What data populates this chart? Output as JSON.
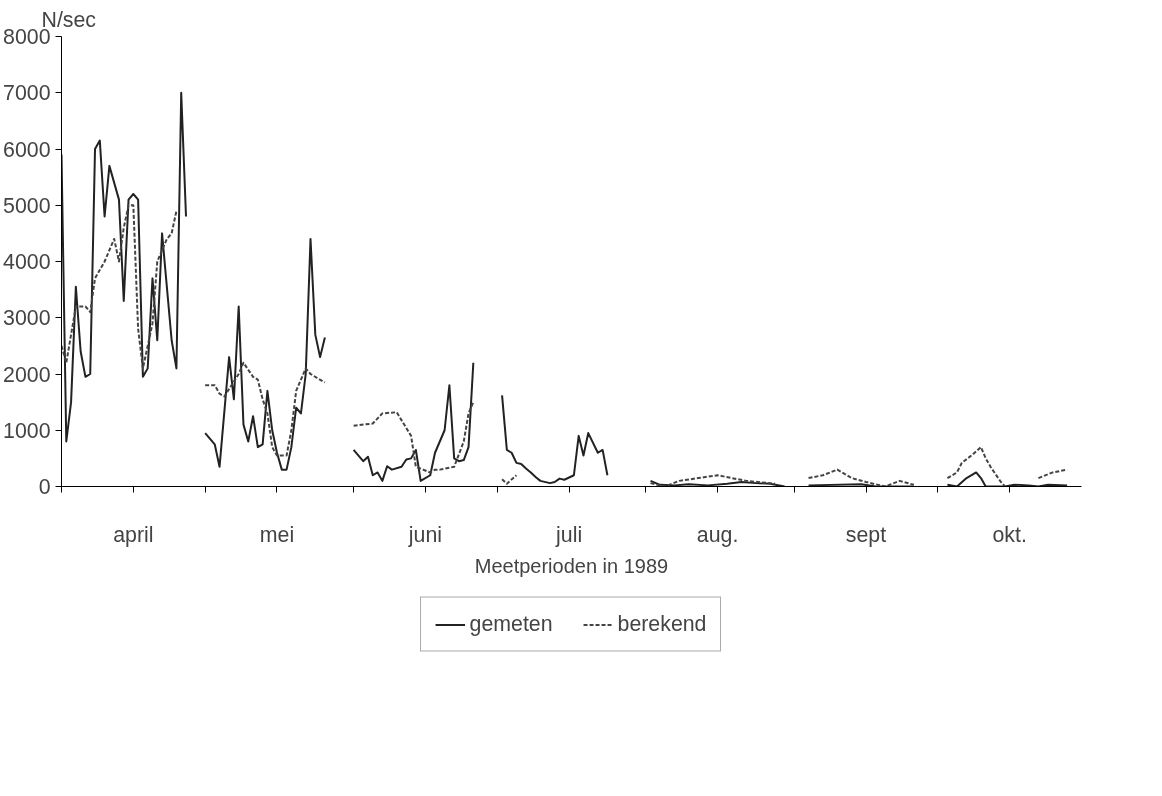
{
  "chart_data": {
    "type": "line",
    "ylabel": "N/sec",
    "xlabel": "Meetperioden in 1989",
    "xlim": [
      "1989-04-01",
      "1989-10-31"
    ],
    "ylim": [
      0,
      8000
    ],
    "xticks": [
      {
        "value": "1989-04-01",
        "label": null
      },
      {
        "value": "1989-04-16",
        "label": "april"
      },
      {
        "value": "1989-05-01",
        "label": null
      },
      {
        "value": "1989-05-16",
        "label": "mei"
      },
      {
        "value": "1989-06-01",
        "label": null
      },
      {
        "value": "1989-06-16",
        "label": "juni"
      },
      {
        "value": "1989-07-01",
        "label": null
      },
      {
        "value": "1989-07-16",
        "label": "juli"
      },
      {
        "value": "1989-08-01",
        "label": null
      },
      {
        "value": "1989-08-16",
        "label": "aug."
      },
      {
        "value": "1989-09-01",
        "label": null
      },
      {
        "value": "1989-09-16",
        "label": "sept"
      },
      {
        "value": "1989-10-01",
        "label": null
      },
      {
        "value": "1989-10-16",
        "label": "okt."
      }
    ],
    "yticks": [
      0,
      1000,
      2000,
      3000,
      4000,
      5000,
      6000,
      7000,
      8000
    ],
    "grid": false,
    "legend": "bottom",
    "series": [
      {
        "name": "gemeten",
        "color": "#222222",
        "line_style": "solid",
        "x": [
          "1989-04-01",
          "1989-04-02",
          "1989-04-03",
          "1989-04-04",
          "1989-04-05",
          "1989-04-06",
          "1989-04-07",
          "1989-04-08",
          "1989-04-09",
          "1989-04-10",
          "1989-04-11",
          "1989-04-13",
          "1989-04-14",
          "1989-04-15",
          "1989-04-16",
          "1989-04-17",
          "1989-04-18",
          "1989-04-19",
          "1989-04-20",
          "1989-04-21",
          "1989-04-22",
          "1989-04-24",
          "1989-04-25",
          "1989-04-26",
          "1989-04-27",
          "1989-04-29",
          "1989-05-01",
          "1989-05-03",
          "1989-05-04",
          "1989-05-06",
          "1989-05-07",
          "1989-05-08",
          "1989-05-09",
          "1989-05-10",
          "1989-05-11",
          "1989-05-12",
          "1989-05-13",
          "1989-05-14",
          "1989-05-15",
          "1989-05-16",
          "1989-05-17",
          "1989-05-18",
          "1989-05-19",
          "1989-05-20",
          "1989-05-21",
          "1989-05-22",
          "1989-05-23",
          "1989-05-24",
          "1989-05-25",
          "1989-05-26",
          "1989-05-29",
          "1989-06-01",
          "1989-06-03",
          "1989-06-04",
          "1989-06-05",
          "1989-06-06",
          "1989-06-07",
          "1989-06-08",
          "1989-06-09",
          "1989-06-11",
          "1989-06-12",
          "1989-06-13",
          "1989-06-14",
          "1989-06-15",
          "1989-06-17",
          "1989-06-18",
          "1989-06-20",
          "1989-06-21",
          "1989-06-22",
          "1989-06-23",
          "1989-06-24",
          "1989-06-25",
          "1989-06-26",
          "1989-06-29",
          "1989-07-02",
          "1989-07-03",
          "1989-07-04",
          "1989-07-05",
          "1989-07-06",
          "1989-07-07",
          "1989-07-08",
          "1989-07-09",
          "1989-07-10",
          "1989-07-12",
          "1989-07-13",
          "1989-07-14",
          "1989-07-15",
          "1989-07-17",
          "1989-07-18",
          "1989-07-19",
          "1989-07-20",
          "1989-07-22",
          "1989-07-23",
          "1989-07-24",
          "1989-07-28",
          "1989-08-02",
          "1989-08-04",
          "1989-08-07",
          "1989-08-10",
          "1989-08-14",
          "1989-08-18",
          "1989-08-21",
          "1989-08-24",
          "1989-08-27",
          "1989-08-30",
          "1989-08-31",
          "1989-09-04",
          "1989-09-15",
          "1989-09-18",
          "1989-09-22",
          "1989-09-26",
          "1989-09-29",
          "1989-10-03",
          "1989-10-05",
          "1989-10-07",
          "1989-10-09",
          "1989-10-10",
          "1989-10-11",
          "1989-10-15",
          "1989-10-17",
          "1989-10-20",
          "1989-10-22",
          "1989-10-24",
          "1989-10-28"
        ],
        "values": [
          5900,
          800,
          1500,
          3550,
          2400,
          1950,
          2000,
          6000,
          6150,
          4800,
          5700,
          5100,
          3300,
          5100,
          5200,
          5100,
          1950,
          2100,
          3700,
          2600,
          4500,
          2600,
          2100,
          7000,
          4800,
          null,
          950,
          750,
          350,
          2300,
          1550,
          3200,
          1100,
          800,
          1250,
          700,
          750,
          1700,
          1000,
          600,
          300,
          300,
          700,
          1400,
          1300,
          2000,
          4400,
          2700,
          2300,
          2650,
          null,
          650,
          450,
          530,
          200,
          250,
          100,
          360,
          300,
          350,
          480,
          500,
          650,
          100,
          200,
          600,
          1000,
          1800,
          500,
          450,
          470,
          700,
          2200,
          null,
          1620,
          650,
          600,
          420,
          400,
          320,
          250,
          170,
          100,
          60,
          80,
          140,
          120,
          200,
          900,
          550,
          950,
          600,
          650,
          200,
          null,
          100,
          30,
          20,
          40,
          20,
          50,
          80,
          60,
          50,
          0,
          null,
          20,
          40,
          0,
          0,
          0,
          null,
          30,
          0,
          150,
          250,
          150,
          0,
          0,
          30,
          20,
          0,
          30,
          20
        ]
      },
      {
        "name": "berekend",
        "color": "#444444",
        "line_style": "dashed",
        "x": [
          "1989-04-01",
          "1989-04-02",
          "1989-04-04",
          "1989-04-06",
          "1989-04-07",
          "1989-04-08",
          "1989-04-10",
          "1989-04-12",
          "1989-04-13",
          "1989-04-14",
          "1989-04-15",
          "1989-04-16",
          "1989-04-17",
          "1989-04-18",
          "1989-04-19",
          "1989-04-20",
          "1989-04-21",
          "1989-04-23",
          "1989-04-24",
          "1989-04-25",
          "1989-04-29",
          "1989-05-01",
          "1989-05-03",
          "1989-05-04",
          "1989-05-05",
          "1989-05-08",
          "1989-05-09",
          "1989-05-11",
          "1989-05-12",
          "1989-05-13",
          "1989-05-14",
          "1989-05-15",
          "1989-05-16",
          "1989-05-18",
          "1989-05-19",
          "1989-05-20",
          "1989-05-22",
          "1989-05-23",
          "1989-05-26",
          "1989-05-29",
          "1989-06-01",
          "1989-06-05",
          "1989-06-07",
          "1989-06-10",
          "1989-06-11",
          "1989-06-13",
          "1989-06-14",
          "1989-06-17",
          "1989-06-18",
          "1989-06-19",
          "1989-06-22",
          "1989-06-24",
          "1989-06-25",
          "1989-06-26",
          "1989-06-29",
          "1989-07-02",
          "1989-07-03",
          "1989-07-05",
          "1989-07-28",
          "1989-08-02",
          "1989-08-05",
          "1989-08-08",
          "1989-08-12",
          "1989-08-16",
          "1989-08-19",
          "1989-08-22",
          "1989-08-28",
          "1989-08-31",
          "1989-09-04",
          "1989-09-07",
          "1989-09-10",
          "1989-09-13",
          "1989-09-16",
          "1989-09-20",
          "1989-09-23",
          "1989-09-26",
          "1989-09-29",
          "1989-10-03",
          "1989-10-05",
          "1989-10-06",
          "1989-10-08",
          "1989-10-10",
          "1989-10-11",
          "1989-10-12",
          "1989-10-14",
          "1989-10-15",
          "1989-10-18",
          "1989-10-22",
          "1989-10-25",
          "1989-10-28"
        ],
        "values": [
          2500,
          2200,
          3200,
          3200,
          3100,
          3700,
          4000,
          4400,
          4000,
          4600,
          5000,
          5000,
          2800,
          2100,
          2500,
          2900,
          4000,
          4400,
          4500,
          4900,
          null,
          1800,
          1800,
          1650,
          1600,
          2000,
          2200,
          1950,
          1900,
          1550,
          1300,
          700,
          550,
          550,
          1000,
          1700,
          2100,
          2000,
          1850,
          null,
          1080,
          1120,
          1300,
          1320,
          1180,
          900,
          350,
          250,
          300,
          300,
          350,
          800,
          1300,
          1500,
          null,
          130,
          50,
          200,
          null,
          60,
          0,
          100,
          150,
          200,
          150,
          100,
          50,
          null,
          150,
          200,
          300,
          150,
          80,
          0,
          100,
          30,
          null,
          150,
          250,
          420,
          550,
          700,
          500,
          350,
          100,
          0,
          null,
          150,
          250,
          300
        ]
      }
    ]
  }
}
